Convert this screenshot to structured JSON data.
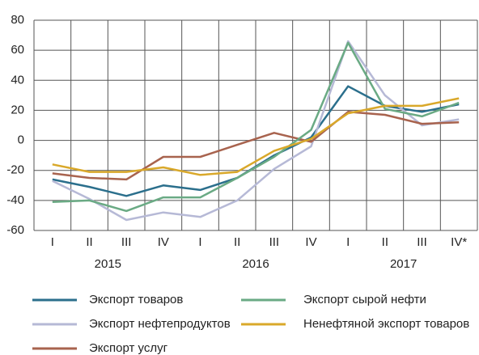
{
  "chart_data": {
    "type": "line",
    "categories": [
      "I",
      "II",
      "III",
      "IV",
      "I",
      "II",
      "III",
      "IV",
      "I",
      "II",
      "III",
      "IV*"
    ],
    "years": [
      "2015",
      "2016",
      "2017"
    ],
    "ylim": [
      -60,
      80
    ],
    "yticks": [
      -60,
      -40,
      -20,
      0,
      20,
      40,
      60,
      80
    ],
    "grid": true,
    "series": [
      {
        "name": "Экспорт товаров",
        "color": "#2b6f8c",
        "values": [
          -26,
          -31,
          -37,
          -30,
          -33,
          -25,
          -10,
          2,
          36,
          23,
          19,
          24
        ]
      },
      {
        "name": "Экспорт нефтепродуктов",
        "color": "#b6b9d6",
        "values": [
          -27,
          -39,
          -53,
          -48,
          -51,
          -40,
          -19,
          -4,
          66,
          30,
          10,
          14
        ]
      },
      {
        "name": "Экспорт услуг",
        "color": "#a8634e",
        "values": [
          -22,
          -25,
          -26,
          -11,
          -11,
          -3,
          5,
          -1,
          19,
          17,
          11,
          12
        ]
      },
      {
        "name": "Экспорт сырой нефти",
        "color": "#6aaa84",
        "values": [
          -41,
          -40,
          -47,
          -38,
          -38,
          -25,
          -11,
          7,
          65,
          21,
          16,
          25
        ]
      },
      {
        "name": "Ненефтяной экспорт товаров",
        "color": "#d9a82a",
        "values": [
          -16,
          -21,
          -21,
          -18,
          -23,
          -21,
          -7,
          1,
          18,
          23,
          23,
          28
        ]
      }
    ]
  }
}
